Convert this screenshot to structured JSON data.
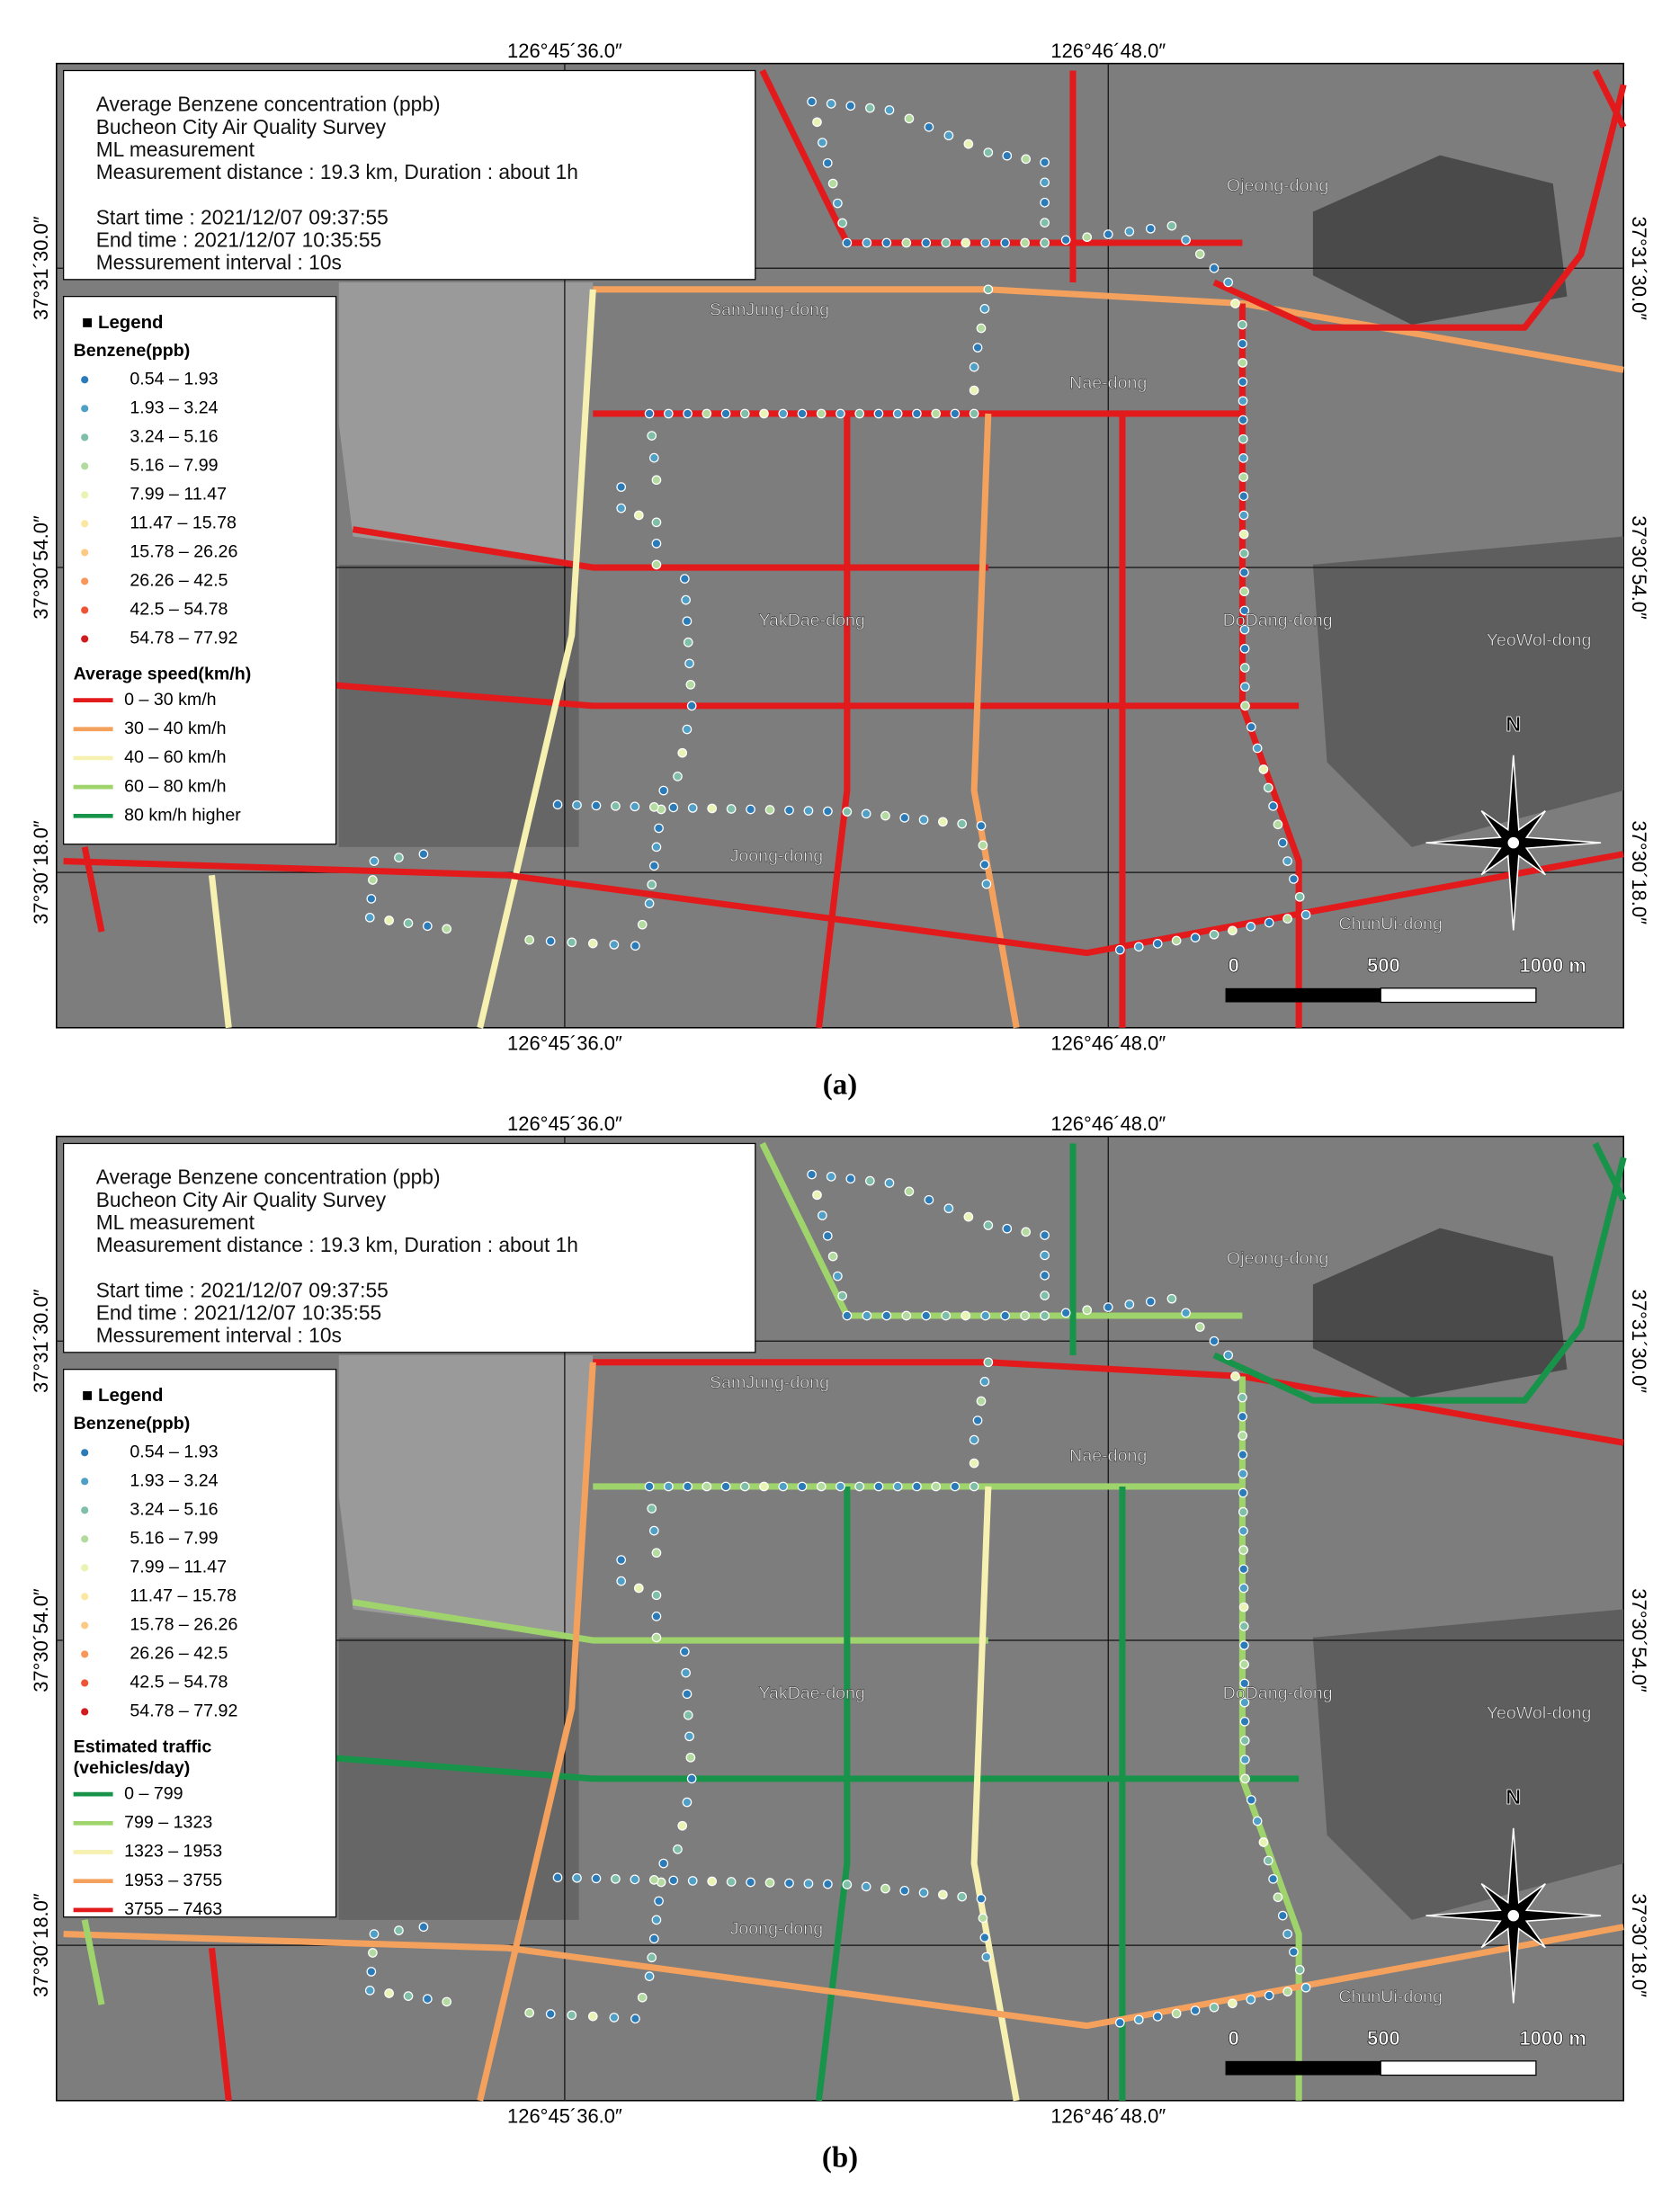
{
  "panels": [
    {
      "caption": "(a)",
      "info": [
        "Average Benzene concentration (ppb)",
        "Bucheon City Air Quality Survey",
        "ML measurement",
        "Measurement distance : 19.3 km, Duration : about 1h",
        "Start time : 2021/12/07 09:37:55",
        "End time : 2021/12/07 10:35:55",
        "Messurement interval : 10s"
      ],
      "legend": {
        "title": "■ Legend",
        "benzene_title": "Benzene(ppb)",
        "benzene": [
          "0.54 – 1.93",
          "1.93 – 3.24",
          "3.24 – 5.16",
          "5.16 – 7.99",
          "7.99 – 11.47",
          "11.47 – 15.78",
          "15.78 – 26.26",
          "26.26 – 42.5",
          "42.5 – 54.78",
          "54.78 – 77.92"
        ],
        "road_title": [
          "Average speed(km/h)"
        ],
        "roads": [
          "0 – 30 km/h",
          "30 – 40 km/h",
          "40 – 60 km/h",
          "60 – 80 km/h",
          "80 km/h higher"
        ]
      },
      "coords": {
        "top": [
          "126°45´36.0″",
          "126°46´48.0″"
        ],
        "bottom": [
          "126°45´36.0″",
          "126°46´48.0″"
        ],
        "left": [
          "37°31´30.0″",
          "37°30´54.0″",
          "37°30´18.0″"
        ],
        "right": [
          "37°31´30.0″",
          "37°30´54.0″",
          "37°30´18.0″"
        ]
      },
      "places": [
        "Ojeong-dong",
        "SamJung-dong",
        "Nae-dong",
        "YakDae-dong",
        "DoDang-dong",
        "YeoWol-dong",
        "Joong-dong",
        "ChunUi-dong"
      ],
      "scale": [
        "0",
        "500",
        "1000 m"
      ],
      "north": "N"
    },
    {
      "caption": "(b)",
      "info": [
        "Average Benzene concentration (ppb)",
        "Bucheon City Air Quality Survey",
        "ML measurement",
        "Measurement distance : 19.3 km, Duration : about 1h",
        "Start time : 2021/12/07 09:37:55",
        "End time : 2021/12/07 10:35:55",
        "Messurement interval : 10s"
      ],
      "legend": {
        "title": "■ Legend",
        "benzene_title": "Benzene(ppb)",
        "benzene": [
          "0.54 – 1.93",
          "1.93 – 3.24",
          "3.24 – 5.16",
          "5.16 – 7.99",
          "7.99 – 11.47",
          "11.47 – 15.78",
          "15.78 – 26.26",
          "26.26 – 42.5",
          "42.5 – 54.78",
          "54.78 – 77.92"
        ],
        "road_title": [
          "Estimated traffic",
          "(vehicles/day)"
        ],
        "roads": [
          "0 – 799",
          "799 – 1323",
          "1323 – 1953",
          "1953 – 3755",
          "3755 – 7463"
        ]
      },
      "coords": {
        "top": [
          "126°45´36.0″",
          "126°46´48.0″"
        ],
        "bottom": [
          "126°45´36.0″",
          "126°46´48.0″"
        ],
        "left": [
          "37°31´30.0″",
          "37°30´54.0″",
          "37°30´18.0″"
        ],
        "right": [
          "37°31´30.0″",
          "37°30´54.0″",
          "37°30´18.0″"
        ]
      },
      "places": [
        "Ojeong-dong",
        "SamJung-dong",
        "Nae-dong",
        "YakDae-dong",
        "DoDang-dong",
        "YeoWol-dong",
        "Joong-dong",
        "ChunUi-dong"
      ],
      "scale": [
        "0",
        "500",
        "1000 m"
      ],
      "north": "N"
    }
  ]
}
